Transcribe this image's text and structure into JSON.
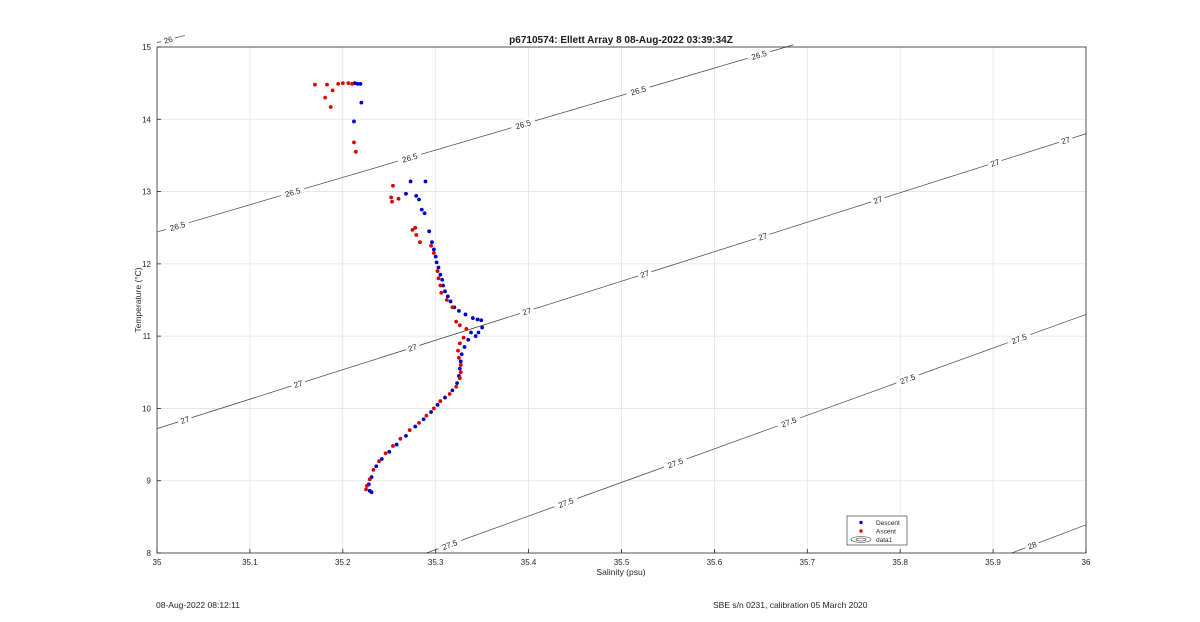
{
  "chart_data": {
    "type": "scatter",
    "title": "p6710574: Ellett Array 8 08-Aug-2022 03:39:34Z",
    "xlabel": "Salinity (psu)",
    "ylabel": "Temperature (°C)",
    "xlim": [
      35,
      36
    ],
    "ylim": [
      8,
      15
    ],
    "xticks": [
      "35",
      "35.1",
      "35.2",
      "35.3",
      "35.4",
      "35.5",
      "35.6",
      "35.7",
      "35.8",
      "35.9",
      "36"
    ],
    "yticks": [
      "8",
      "9",
      "10",
      "11",
      "12",
      "13",
      "14",
      "15"
    ],
    "grid": true,
    "legend_position": "bottom-right",
    "series": [
      {
        "name": "Descent",
        "color": "#0000cc",
        "points": [
          [
            35.219,
            14.49
          ],
          [
            35.216,
            14.49
          ],
          [
            35.213,
            14.5
          ],
          [
            35.22,
            14.23
          ],
          [
            35.212,
            13.97
          ],
          [
            35.289,
            13.14
          ],
          [
            35.273,
            13.14
          ],
          [
            35.268,
            12.97
          ],
          [
            35.279,
            12.94
          ],
          [
            35.282,
            12.89
          ],
          [
            35.285,
            12.75
          ],
          [
            35.288,
            12.7
          ],
          [
            35.293,
            12.45
          ],
          [
            35.296,
            12.3
          ],
          [
            35.298,
            12.2
          ],
          [
            35.3,
            12.1
          ],
          [
            35.301,
            12.02
          ],
          [
            35.303,
            11.95
          ],
          [
            35.305,
            11.85
          ],
          [
            35.307,
            11.78
          ],
          [
            35.308,
            11.7
          ],
          [
            35.31,
            11.62
          ],
          [
            35.313,
            11.55
          ],
          [
            35.316,
            11.48
          ],
          [
            35.32,
            11.4
          ],
          [
            35.325,
            11.35
          ],
          [
            35.332,
            11.3
          ],
          [
            35.34,
            11.25
          ],
          [
            35.345,
            11.23
          ],
          [
            35.349,
            11.22
          ],
          [
            35.35,
            11.12
          ],
          [
            35.346,
            11.05
          ],
          [
            35.343,
            11.0
          ],
          [
            35.338,
            11.05
          ],
          [
            35.335,
            10.95
          ],
          [
            35.331,
            10.85
          ],
          [
            35.328,
            10.75
          ],
          [
            35.327,
            10.65
          ],
          [
            35.326,
            10.55
          ],
          [
            35.325,
            10.45
          ],
          [
            35.323,
            10.35
          ],
          [
            35.318,
            10.25
          ],
          [
            35.31,
            10.15
          ],
          [
            35.302,
            10.05
          ],
          [
            35.295,
            9.95
          ],
          [
            35.287,
            9.85
          ],
          [
            35.278,
            9.75
          ],
          [
            35.268,
            9.62
          ],
          [
            35.258,
            9.5
          ],
          [
            35.25,
            9.4
          ],
          [
            35.242,
            9.3
          ],
          [
            35.236,
            9.2
          ],
          [
            35.231,
            9.05
          ],
          [
            35.228,
            8.95
          ],
          [
            35.229,
            8.86
          ],
          [
            35.231,
            8.84
          ]
        ]
      },
      {
        "name": "Ascent",
        "color": "#dd0000",
        "points": [
          [
            35.17,
            14.48
          ],
          [
            35.183,
            14.48
          ],
          [
            35.195,
            14.49
          ],
          [
            35.2,
            14.5
          ],
          [
            35.206,
            14.5
          ],
          [
            35.21,
            14.49
          ],
          [
            35.189,
            14.4
          ],
          [
            35.181,
            14.3
          ],
          [
            35.187,
            14.17
          ],
          [
            35.212,
            13.68
          ],
          [
            35.214,
            13.55
          ],
          [
            35.254,
            13.08
          ],
          [
            35.252,
            12.92
          ],
          [
            35.253,
            12.86
          ],
          [
            35.26,
            12.9
          ],
          [
            35.275,
            12.47
          ],
          [
            35.278,
            12.5
          ],
          [
            35.279,
            12.4
          ],
          [
            35.283,
            12.3
          ],
          [
            35.295,
            12.25
          ],
          [
            35.298,
            12.15
          ],
          [
            35.302,
            11.9
          ],
          [
            35.303,
            11.8
          ],
          [
            35.305,
            11.7
          ],
          [
            35.306,
            11.6
          ],
          [
            35.312,
            11.5
          ],
          [
            35.322,
            11.2
          ],
          [
            35.318,
            11.4
          ],
          [
            35.326,
            11.15
          ],
          [
            35.333,
            11.1
          ],
          [
            35.33,
            10.98
          ],
          [
            35.326,
            10.9
          ],
          [
            35.324,
            10.8
          ],
          [
            35.325,
            10.7
          ],
          [
            35.327,
            10.6
          ],
          [
            35.327,
            10.5
          ],
          [
            35.326,
            10.42
          ],
          [
            35.322,
            10.3
          ],
          [
            35.315,
            10.2
          ],
          [
            35.305,
            10.1
          ],
          [
            35.298,
            10.0
          ],
          [
            35.29,
            9.9
          ],
          [
            35.282,
            9.8
          ],
          [
            35.272,
            9.7
          ],
          [
            35.262,
            9.58
          ],
          [
            35.254,
            9.48
          ],
          [
            35.246,
            9.38
          ],
          [
            35.239,
            9.27
          ],
          [
            35.233,
            9.15
          ],
          [
            35.229,
            9.02
          ],
          [
            35.226,
            8.93
          ],
          [
            35.225,
            8.88
          ]
        ]
      }
    ],
    "contours": [
      {
        "level": "26",
        "labels": [
          "26"
        ]
      },
      {
        "level": "26.5",
        "labels": [
          "26.5",
          "26.5",
          "26.5",
          "26.5",
          "26.5",
          "26.5"
        ]
      },
      {
        "level": "27",
        "labels": [
          "27",
          "27",
          "27",
          "27",
          "27",
          "27",
          "27",
          "27",
          "27"
        ]
      },
      {
        "level": "27.5",
        "labels": [
          "27.5",
          "27.5",
          "27.5",
          "27.5",
          "27.5",
          "27.5"
        ]
      },
      {
        "level": "28",
        "labels": [
          "28"
        ]
      }
    ],
    "legend": [
      {
        "label": "Descent",
        "marker": "dot",
        "color": "#0000cc"
      },
      {
        "label": "Ascent",
        "marker": "dot",
        "color": "#dd0000"
      },
      {
        "label": "data1",
        "marker": "contour",
        "color": "#333333"
      }
    ]
  },
  "footer": {
    "left": "08-Aug-2022 08:12:11",
    "right": "SBE s/n 0231, calibration 05 March 2020"
  }
}
